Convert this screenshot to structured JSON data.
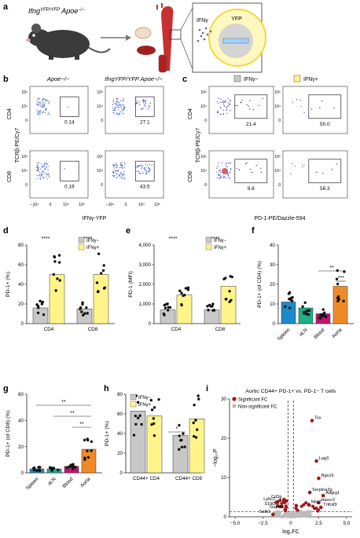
{
  "panels": {
    "a": "a",
    "b": "b",
    "c": "c",
    "d": "d",
    "e": "e",
    "f": "f",
    "g": "g",
    "h": "h",
    "i": "i"
  },
  "panel_a": {
    "mouse_label": "Ifng",
    "mouse_label_sup": "YFP/YFP",
    "mouse_label_suffix": " Apoe",
    "mouse_label_sup2": "−/−",
    "ifng_label": "IFNγ",
    "yfp_label": "YFP"
  },
  "panel_b": {
    "col_titles": [
      "Apoe−/−",
      "IfngYFP/YFP Apoe−/−"
    ],
    "row_labels": [
      "CD4",
      "CD8"
    ],
    "y_axis_label": "TCRβ-PE/Cy7",
    "x_axis_label": "IFNγ-YFP",
    "gate_values": [
      "0.14",
      "27.1",
      "0.19",
      "43.5"
    ],
    "x_ticks": [
      "−10⁴",
      "0",
      "10⁴",
      "10⁵"
    ],
    "y_ticks": [
      "10⁵",
      "10⁴",
      "0"
    ]
  },
  "panel_c": {
    "legend": [
      "IFNγ−",
      "IFNγ+"
    ],
    "row_labels": [
      "CD4",
      "CD8"
    ],
    "y_axis_label": "TCRβ-PE/Cy7",
    "x_axis_label": "PD-1-PE/Dazzle-594",
    "gate_values": [
      "21.4",
      "50.0",
      "9.8",
      "58.3"
    ]
  },
  "panel_d": {
    "y_label": "PD-1+ (%)",
    "legend": [
      "IFNγ−",
      "IFNγ+"
    ],
    "categories": [
      "CD4",
      "CD8"
    ],
    "y_ticks": [
      "0",
      "20",
      "40",
      "60",
      "80"
    ],
    "sig": [
      "****",
      "****"
    ]
  },
  "panel_e": {
    "y_label": "PD-1 (MFI)",
    "legend": [
      "IFNγ−",
      "IFNγ+"
    ],
    "categories": [
      "CD4",
      "CD8"
    ],
    "y_ticks": [
      "0",
      "1,000",
      "2,000",
      "3,000",
      "4,000"
    ],
    "sig": [
      "****",
      "****"
    ]
  },
  "panel_f": {
    "y_label": "PD-1+ (of CD4) (%)",
    "categories": [
      "Spleen",
      "aLN",
      "Blood",
      "Aorta"
    ],
    "y_ticks": [
      "0",
      "10",
      "20",
      "30",
      "40"
    ],
    "sig": [
      "**",
      "***"
    ]
  },
  "panel_g": {
    "y_label": "PD-1+ (of CD8) (%)",
    "categories": [
      "Spleen",
      "aLN",
      "Blood",
      "Aorta"
    ],
    "y_ticks": [
      "0",
      "20",
      "40",
      "60"
    ],
    "sig": [
      "**",
      "**",
      "**"
    ]
  },
  "panel_h": {
    "y_label": "PD-1+ (%)",
    "legend": [
      "IFNγ−",
      "IFNγ+"
    ],
    "categories": [
      "CD44+ CD4",
      "CD44+ CD8"
    ],
    "y_ticks": [
      "0",
      "20",
      "40",
      "60",
      "80"
    ],
    "sig": [
      "*"
    ]
  },
  "panel_i": {
    "title": "Aortic CD44+ PD-1+ vs. PD-1− T cells",
    "legend": [
      "Significant FC",
      "Non-significant FC"
    ],
    "x_label": "log₂FC",
    "y_label": "−log₁₀P",
    "x_ticks": [
      "−5.0",
      "−2.5",
      "0",
      "2.5",
      "5.0"
    ],
    "y_ticks": [
      "0",
      "10",
      "20",
      "30"
    ],
    "genes": [
      "Tox",
      "Lag3",
      "Rgs16",
      "Serpina3g",
      "Adgrg1",
      "Havcr2",
      "Tnfrsf9",
      "Nkg7",
      "Ly6c2",
      "Cd3g",
      "S100a6",
      "Gapdh",
      "Satb1"
    ]
  },
  "colors": {
    "ifng_neg": "#c8c8c8",
    "ifng_pos": "#fff48a",
    "spleen": "#1a8ac8",
    "aln": "#1ab08a",
    "blood": "#c0146e",
    "aorta": "#f08a28",
    "sig_dot": "#a01818",
    "nonsig_dot": "#bbbbbb"
  },
  "chart_data": [
    {
      "type": "bar",
      "panel": "d",
      "categories": [
        "CD4",
        "CD8"
      ],
      "series": [
        {
          "name": "IFNγ−",
          "values": [
            16,
            15
          ]
        },
        {
          "name": "IFNγ+",
          "values": [
            50,
            50
          ]
        }
      ],
      "ylabel": "PD-1+ (%)",
      "ylim": [
        0,
        80
      ]
    },
    {
      "type": "bar",
      "panel": "e",
      "categories": [
        "CD4",
        "CD8"
      ],
      "series": [
        {
          "name": "IFNγ−",
          "values": [
            700,
            700
          ]
        },
        {
          "name": "IFNγ+",
          "values": [
            1450,
            1900
          ]
        }
      ],
      "ylabel": "PD-1 (MFI)",
      "ylim": [
        0,
        4000
      ]
    },
    {
      "type": "bar",
      "panel": "f",
      "categories": [
        "Spleen",
        "aLN",
        "Blood",
        "Aorta"
      ],
      "values": [
        11,
        8,
        5,
        19
      ],
      "ylabel": "PD-1+ (of CD4) (%)",
      "ylim": [
        0,
        40
      ]
    },
    {
      "type": "bar",
      "panel": "g",
      "categories": [
        "Spleen",
        "aLN",
        "Blood",
        "Aorta"
      ],
      "values": [
        3,
        3,
        5,
        18
      ],
      "ylabel": "PD-1+ (of CD8) (%)",
      "ylim": [
        0,
        60
      ]
    },
    {
      "type": "bar",
      "panel": "h",
      "categories": [
        "CD44+ CD4",
        "CD44+ CD8"
      ],
      "series": [
        {
          "name": "IFNγ−",
          "values": [
            63,
            38
          ]
        },
        {
          "name": "IFNγ+",
          "values": [
            58,
            55
          ]
        }
      ],
      "ylabel": "PD-1+ (%)",
      "ylim": [
        0,
        80
      ]
    },
    {
      "type": "scatter",
      "panel": "i",
      "title": "Aortic CD44+ PD-1+ vs. PD-1− T cells",
      "xlabel": "log₂FC",
      "ylabel": "−log₁₀P",
      "xlim": [
        -5.5,
        5.5
      ],
      "ylim": [
        0,
        30
      ],
      "points": [
        {
          "gene": "Tox",
          "x": 1.9,
          "y": 24.5
        },
        {
          "gene": "Lag3",
          "x": 2.3,
          "y": 14.2
        },
        {
          "gene": "Rgs16",
          "x": 2.5,
          "y": 9.8
        },
        {
          "gene": "Serpina3g",
          "x": 1.7,
          "y": 6.2
        },
        {
          "gene": "Adgrg1",
          "x": 2.9,
          "y": 5.4
        },
        {
          "gene": "Havcr2",
          "x": 2.5,
          "y": 3.6
        },
        {
          "gene": "Tnfrsf9",
          "x": 2.7,
          "y": 2.4
        },
        {
          "gene": "Nkg7",
          "x": 1.6,
          "y": 3.1
        },
        {
          "gene": "Ly6c2",
          "x": -1.2,
          "y": 3.8
        },
        {
          "gene": "Cd3g",
          "x": -0.6,
          "y": 4.4
        },
        {
          "gene": "S100a6",
          "x": -0.8,
          "y": 2.6
        },
        {
          "gene": "Gapdh",
          "x": -0.5,
          "y": 1.8
        },
        {
          "gene": "Satb1",
          "x": -1.6,
          "y": 0.6
        }
      ]
    }
  ]
}
